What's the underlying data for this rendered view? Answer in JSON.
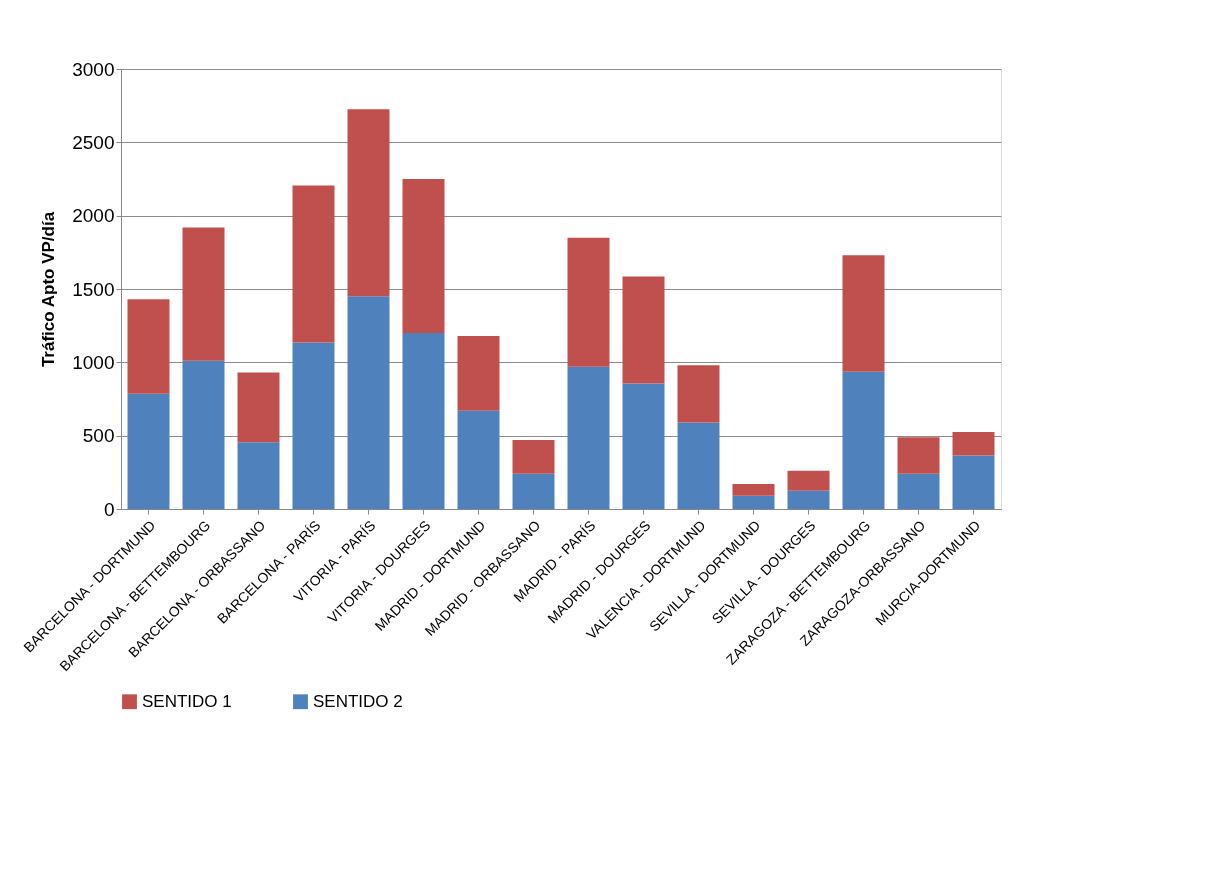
{
  "chart_data": {
    "type": "bar",
    "stacked": true,
    "ylabel": "Tráfico Apto VP/día",
    "categories": [
      "BARCELONA - DORTMUND",
      "BARCELONA - BETTEMBOURG",
      "BARCELONA - ORBASSANO",
      "BARCELONA - PARÍS",
      "VITORIA - PARÍS",
      "VITORIA - DOURGES",
      "MADRID - DORTMUND",
      "MADRID - ORBASSANO",
      "MADRID - PARÍS",
      "MADRID - DOURGES",
      "VALENCIA - DORTMUND",
      "SEVILLA - DORTMUND",
      "SEVILLA - DOURGES",
      "ZARAGOZA - BETTEMBOURG",
      "ZARAGOZA-ORBASSANO",
      "MURCIA-DORTMUND"
    ],
    "series": [
      {
        "name": "SENTIDO 2",
        "color": "#4f81bd",
        "values": [
          785,
          1010,
          455,
          1135,
          1450,
          1200,
          670,
          240,
          970,
          855,
          590,
          90,
          125,
          935,
          240,
          365
        ]
      },
      {
        "name": "SENTIDO 1",
        "color": "#c0504d",
        "values": [
          645,
          910,
          475,
          1070,
          1275,
          1050,
          510,
          230,
          880,
          730,
          390,
          80,
          135,
          795,
          250,
          160
        ]
      }
    ],
    "ylim": [
      0,
      3000
    ],
    "yticks": [
      0,
      500,
      1000,
      1500,
      2000,
      2500,
      3000
    ],
    "grid": "y",
    "legend": "bottom"
  }
}
